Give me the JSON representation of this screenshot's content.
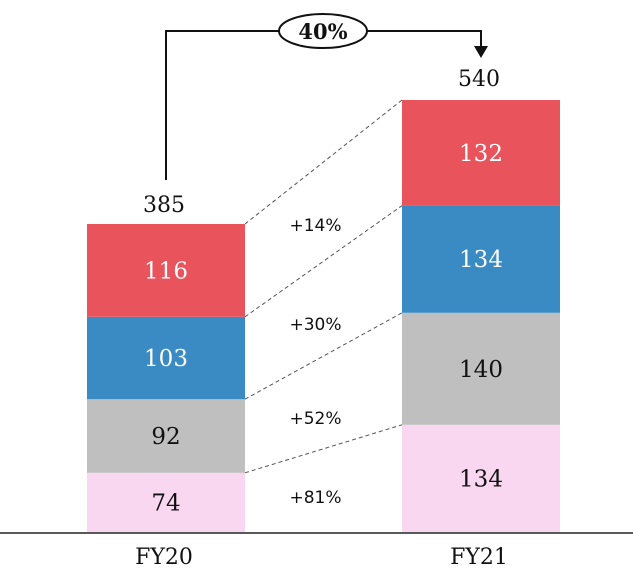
{
  "chart_data": {
    "type": "bar",
    "stacked": true,
    "categories": [
      "FY20",
      "FY21"
    ],
    "series": [
      {
        "values": [
          74,
          134
        ],
        "color": "#f9d7f1"
      },
      {
        "values": [
          92,
          140
        ],
        "color": "#bfbfbf"
      },
      {
        "values": [
          103,
          134
        ],
        "color": "#3a8bc4"
      },
      {
        "values": [
          116,
          132
        ],
        "color": "#e8535c"
      }
    ],
    "totals": [
      "385",
      "540"
    ],
    "growth_labels": [
      "+81%",
      "+52%",
      "+30%",
      "+14%"
    ],
    "overall_change": "40%",
    "segment_label_colors": [
      "#111111",
      "#111111",
      "#ffffff",
      "#ffffff"
    ],
    "grid": false,
    "legend": "none"
  }
}
